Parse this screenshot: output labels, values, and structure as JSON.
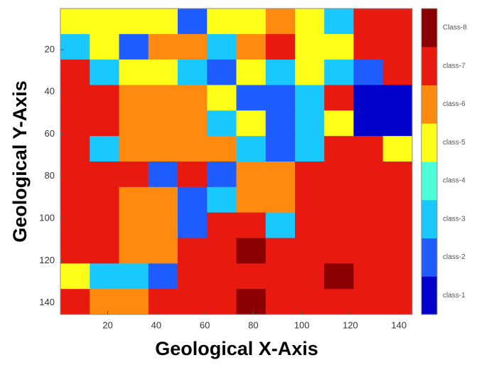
{
  "chart_data": {
    "type": "heatmap",
    "x_label": "Geological X-Axis",
    "y_label": "Geological Y-Axis",
    "xlim": [
      0.5,
      145.5
    ],
    "ylim": [
      0.5,
      145.5
    ],
    "xticks": [
      20,
      40,
      60,
      80,
      100,
      120,
      140
    ],
    "yticks": [
      20,
      40,
      60,
      80,
      100,
      120,
      140
    ],
    "y_reversed": true,
    "colorbar": {
      "labels": [
        "class-1",
        "class-2",
        "class-3",
        "class-4",
        "class-5",
        "class-6",
        "class-7",
        "Class-8"
      ],
      "colors": [
        "#0000c8",
        "#1f5cff",
        "#18c8ff",
        "#4dffd8",
        "#ffff1a",
        "#ff8a10",
        "#e81a10",
        "#8a0000"
      ]
    },
    "z": [
      [
        5,
        5,
        5,
        5,
        2,
        5,
        5,
        6,
        5,
        3,
        7,
        7
      ],
      [
        3,
        5,
        2,
        6,
        6,
        3,
        6,
        7,
        5,
        5,
        7,
        7
      ],
      [
        7,
        3,
        5,
        5,
        3,
        2,
        5,
        3,
        5,
        3,
        2,
        7
      ],
      [
        7,
        7,
        6,
        6,
        6,
        5,
        2,
        2,
        3,
        7,
        1,
        1
      ],
      [
        7,
        7,
        6,
        6,
        6,
        3,
        5,
        2,
        3,
        5,
        1,
        1
      ],
      [
        7,
        3,
        6,
        6,
        6,
        6,
        3,
        2,
        3,
        7,
        7,
        5
      ],
      [
        7,
        7,
        7,
        2,
        7,
        2,
        6,
        6,
        7,
        7,
        7,
        7
      ],
      [
        7,
        7,
        6,
        6,
        2,
        3,
        6,
        6,
        7,
        7,
        7,
        7
      ],
      [
        7,
        7,
        6,
        6,
        2,
        7,
        7,
        3,
        7,
        7,
        7,
        7
      ],
      [
        7,
        7,
        6,
        6,
        7,
        7,
        8,
        7,
        7,
        7,
        7,
        7
      ],
      [
        5,
        3,
        3,
        2,
        7,
        7,
        7,
        7,
        7,
        8,
        7,
        7
      ],
      [
        7,
        6,
        6,
        7,
        7,
        7,
        8,
        7,
        7,
        7,
        7,
        7
      ]
    ]
  }
}
